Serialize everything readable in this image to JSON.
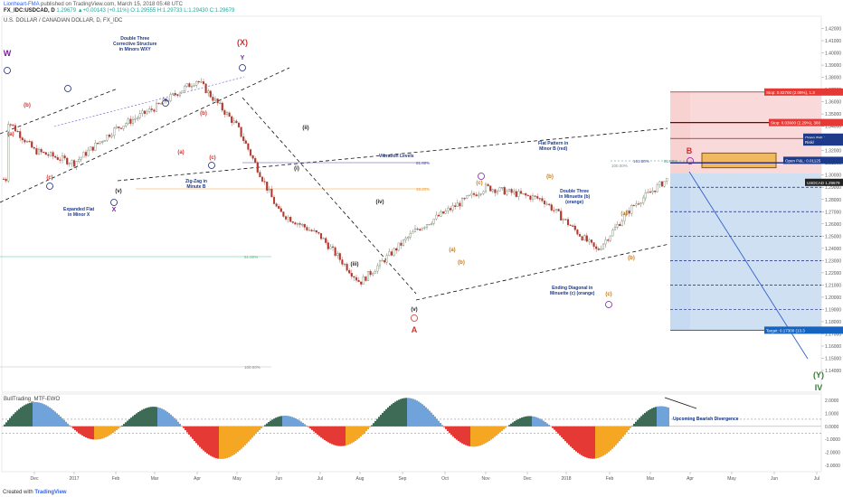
{
  "header": {
    "author": "Lionheart-FMA",
    "published": "published on TradingView.com, March 15, 2018 05:48 UTC",
    "ohlc_prefix": "FX_IDC:USDCAD, D",
    "ohlc": "1.29679  ▲+0.00143 (+0.11%)  O:1.29555  H:1.29733  L:1.29430  C:1.29679",
    "symbol_title": "U.S. DOLLAR / CANADIAN DOLLAR, D, FX_IDC",
    "indicator_title": "BullTrading_MTF-EWO"
  },
  "footer": {
    "created_with": "Created with",
    "brand": "TradingView"
  },
  "annotations": {
    "wxy": "Double Three\nCorrective Structure\nin Minors WXY",
    "expanded_flat": "Expanded Flat\nin Minor X",
    "zigzag": "Zig-Zag in\nMinute B",
    "vibration": "Vibration Levels",
    "flat_pattern": "Flat Pattern in\nMinor B (red)",
    "double_three_minuette": "Double Three\nin Minuette (b)\n(orange)",
    "ending_diagonal": "Ending Diagonal in\nMinuette (c) (orange)",
    "bearish_div": "Upcoming Bearish Divergence"
  },
  "wave_labels": {
    "W": "W",
    "X": "(X)",
    "Y": "Y",
    "A": "A",
    "B": "B",
    "YY": "(Y)",
    "IV": "IV",
    "b_circ": "ⓑ",
    "c_circ": "ⓒ",
    "a_circ": "ⓐ",
    "x_circ": "ⓧ",
    "y_circ": "ⓨ",
    "i": "(i)",
    "ii": "(ii)",
    "iii": "(iii)",
    "iv": "(iv)",
    "v": "(v)",
    "a": "(a)",
    "b": "(b)",
    "c": "(c)"
  },
  "levels": {
    "pct_61_8_upper": "61.80%",
    "pct_38_2": "38.20%",
    "pct_61_8_lower": "61.80%",
    "pct_100": "100.00%",
    "pct_161_8": "161.80%",
    "pct_61_8_small": "61.80%",
    "pct_100_small": "100.00%"
  },
  "trade": {
    "stop_label": "Stop: 0.02700 (2.08%), 1.3",
    "stop2_label": "Stop: 0.03600 (2.29%), 360",
    "open_pl_label": "Open P&L:",
    "risk_label": "Risk/",
    "open_pl_ratio": "Open P&L: 0.01125\nRisk/Reward R",
    "target_label": "Target: 0.17300 (13.3",
    "price_tag": "USDCAD 1.29679"
  },
  "axis": {
    "y_ticks": [
      "1.42000",
      "1.41000",
      "1.40000",
      "1.39000",
      "1.38000",
      "1.37000",
      "1.36000",
      "1.35000",
      "1.34000",
      "1.33000",
      "1.32000",
      "1.31000",
      "1.30000",
      "1.29000",
      "1.28000",
      "1.27000",
      "1.26000",
      "1.25000",
      "1.24000",
      "1.23000",
      "1.22000",
      "1.21000",
      "1.20000",
      "1.19000",
      "1.18000",
      "1.17000",
      "1.16000",
      "1.15000",
      "1.14000"
    ],
    "x_ticks": [
      "Dec",
      "2017",
      "Feb",
      "Mar",
      "Apr",
      "May",
      "Jun",
      "Jul",
      "Aug",
      "Sep",
      "Oct",
      "Nov",
      "Dec",
      "2018",
      "Feb",
      "Mar",
      "Apr",
      "May",
      "Jun",
      "Jul"
    ],
    "osc_ticks": [
      "2.0000",
      "1.0000",
      "0.0000",
      "-1.0000",
      "-2.0000",
      "-3.0000"
    ]
  },
  "colors": {
    "up": "#26a69a",
    "down": "#ef5350",
    "candle": "#4a5340",
    "stop_zone": "#f7c9c9",
    "target_zone": "#bcd3ee",
    "wave_red": "#d32f2f",
    "wave_navy": "#1a237e",
    "wave_orange": "#c77a14",
    "wave_purple": "#7b1fa2",
    "osc_pos": "#3d6b56",
    "osc_blue": "#6fa3d9",
    "osc_red": "#e53935",
    "osc_orange": "#f5a623"
  },
  "chart_data": {
    "type": "line",
    "title": "U.S. DOLLAR / CANADIAN DOLLAR, D, FX_IDC",
    "xlabel": "",
    "ylabel": "",
    "x": [
      "Dec",
      "2017",
      "Feb",
      "Mar",
      "Apr",
      "May",
      "Jun",
      "Jul",
      "Aug",
      "Sep",
      "Oct",
      "Nov",
      "Dec",
      "2018",
      "Feb",
      "Mar"
    ],
    "series": [
      {
        "name": "USDCAD",
        "values": [
          1.345,
          1.32,
          1.31,
          1.338,
          1.355,
          1.378,
          1.34,
          1.27,
          1.25,
          1.212,
          1.255,
          1.29,
          1.28,
          1.238,
          1.275,
          1.2968
        ]
      }
    ],
    "ylim": [
      1.14,
      1.43
    ],
    "target": 1.173,
    "stop": 1.368
  }
}
